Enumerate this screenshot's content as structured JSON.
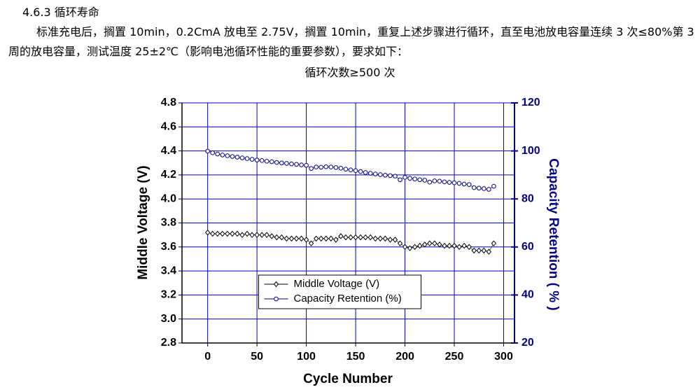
{
  "document": {
    "heading": "4.6.3 循环寿命",
    "paragraph": "标准充电后，搁置 10min，0.2CmA 放电至 2.75V，搁置 10min，重复上述步骤进行循环，直至电池放电容量连续 3 次≤80%第 3 周的放电容量，测试温度 25±2℃（影响电池循环性能的重要参数），要求如下：",
    "requirement": "循环次数≥500 次"
  },
  "chart_data": {
    "type": "line",
    "x_label": "Cycle Number",
    "y_label": "Middle Voltage (V)",
    "y2_label": "Capacity Retention ( % )",
    "x": [
      0,
      5,
      10,
      15,
      20,
      25,
      30,
      35,
      40,
      45,
      50,
      55,
      60,
      65,
      70,
      75,
      80,
      85,
      90,
      95,
      100,
      105,
      110,
      115,
      120,
      125,
      130,
      135,
      140,
      145,
      150,
      155,
      160,
      165,
      170,
      175,
      180,
      185,
      190,
      195,
      200,
      205,
      210,
      215,
      220,
      225,
      230,
      235,
      240,
      245,
      250,
      255,
      260,
      265,
      270,
      275,
      280,
      285,
      290
    ],
    "series": [
      {
        "name": "Middle Voltage (V)",
        "color": "#000000",
        "marker": "diamond",
        "axis": "y",
        "values": [
          3.72,
          3.71,
          3.71,
          3.71,
          3.71,
          3.71,
          3.71,
          3.7,
          3.71,
          3.7,
          3.7,
          3.7,
          3.7,
          3.69,
          3.68,
          3.68,
          3.67,
          3.67,
          3.67,
          3.67,
          3.66,
          3.63,
          3.67,
          3.67,
          3.67,
          3.67,
          3.66,
          3.69,
          3.68,
          3.68,
          3.68,
          3.68,
          3.68,
          3.68,
          3.67,
          3.67,
          3.67,
          3.66,
          3.66,
          3.63,
          3.6,
          3.59,
          3.6,
          3.61,
          3.62,
          3.63,
          3.63,
          3.62,
          3.61,
          3.61,
          3.61,
          3.6,
          3.61,
          3.6,
          3.57,
          3.57,
          3.57,
          3.56,
          3.63
        ]
      },
      {
        "name": "Capacity Retention (%)",
        "color": "#000080",
        "marker": "circle",
        "axis": "y2",
        "values": [
          99.9,
          99.2,
          98.7,
          98.3,
          98.0,
          97.7,
          97.4,
          97.1,
          96.8,
          96.5,
          96.2,
          96.0,
          95.7,
          95.5,
          95.2,
          95.0,
          94.8,
          94.6,
          94.4,
          94.2,
          94.0,
          92.7,
          93.3,
          93.2,
          93.4,
          93.3,
          93.1,
          92.8,
          92.4,
          92.1,
          91.8,
          91.4,
          91.0,
          90.7,
          90.4,
          90.1,
          89.9,
          89.7,
          89.5,
          88.0,
          89.0,
          88.6,
          88.3,
          88.0,
          87.8,
          87.0,
          87.5,
          87.4,
          87.1,
          86.9,
          86.7,
          86.5,
          86.2,
          86.0,
          84.7,
          84.5,
          84.3,
          84.0,
          85.3
        ]
      }
    ],
    "xlim": [
      -26,
      311
    ],
    "xticks": [
      0,
      50,
      100,
      150,
      200,
      250,
      300
    ],
    "ylim": [
      2.8,
      4.8
    ],
    "yticks": [
      2.8,
      {
        "value": 3,
        "label": "3.0"
      },
      3.2,
      3.4,
      3.6,
      3.8,
      {
        "value": 4,
        "label": "4.0"
      },
      4.2,
      4.4,
      4.6,
      4.8
    ],
    "y2lim": [
      20,
      120
    ],
    "y2ticks": [
      20,
      40,
      60,
      80,
      100,
      120
    ],
    "grid": true,
    "grid_color": "#0000c0",
    "y2_color": "#000080",
    "legend": "lower center"
  }
}
